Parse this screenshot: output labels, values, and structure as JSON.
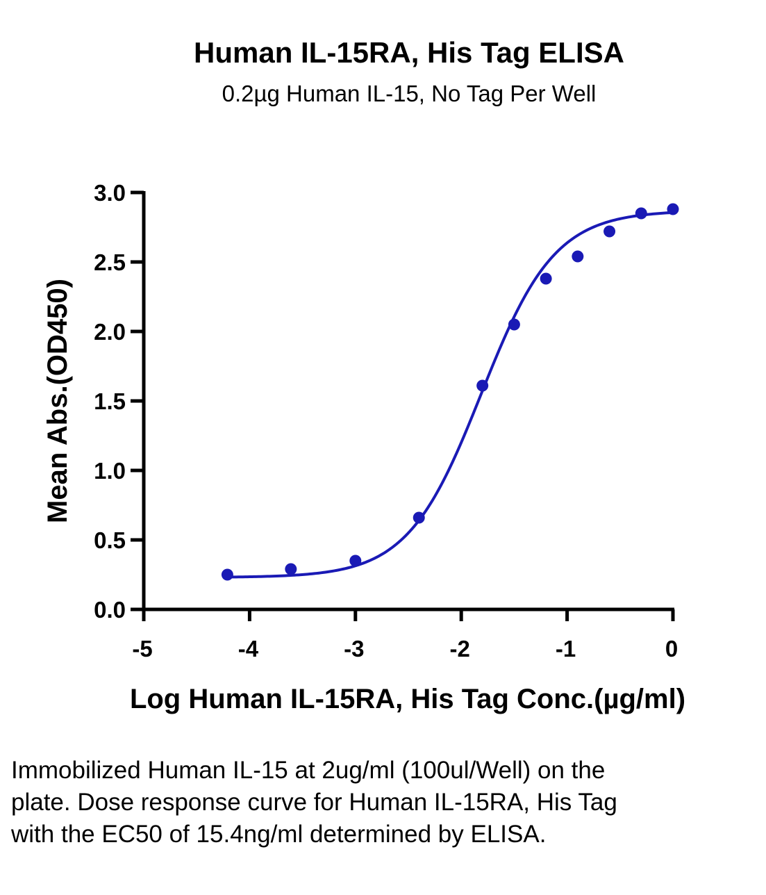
{
  "chart_data": {
    "type": "scatter",
    "title": "Human IL-15RA, His Tag ELISA",
    "subtitle": "0.2µg Human IL-15, No Tag Per Well",
    "xlabel": "Log Human IL-15RA, His Tag Conc.(µg/ml)",
    "ylabel": "Mean Abs.(OD450)",
    "xlim": [
      -5,
      0
    ],
    "ylim": [
      0,
      3.0
    ],
    "xticks": [
      "-5",
      "-4",
      "-3",
      "-2",
      "-1",
      "0"
    ],
    "yticks": [
      "0.0",
      "0.5",
      "1.0",
      "1.5",
      "2.0",
      "2.5",
      "3.0"
    ],
    "grid": false,
    "series": [
      {
        "x": [
          -4.21,
          -3.61,
          -3.0,
          -2.4,
          -1.8,
          -1.5,
          -1.2,
          -0.9,
          -0.6,
          -0.3,
          0.0
        ],
        "y": [
          0.25,
          0.29,
          0.35,
          0.66,
          1.61,
          2.05,
          2.38,
          2.54,
          2.72,
          2.85,
          2.88
        ]
      }
    ],
    "fit_curve": {
      "type": "4PL",
      "bottom": 0.23,
      "top": 2.87,
      "logEC50": -1.812,
      "hill": 1.25
    },
    "ec50": "15.4ng/ml",
    "colors": {
      "series": "#1a1ab5",
      "axis": "#000000"
    }
  },
  "caption": "Immobilized Human IL-15 at 2ug/ml (100ul/Well) on the plate. Dose response curve for Human IL-15RA, His Tag with the EC50 of 15.4ng/ml determined by ELISA."
}
